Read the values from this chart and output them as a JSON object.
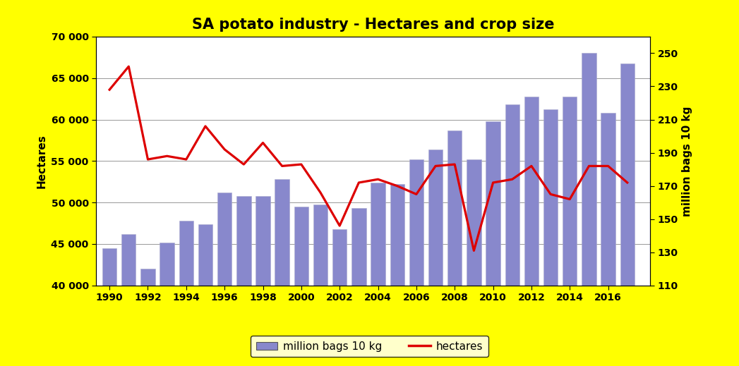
{
  "title": "SA potato industry - Hectares and crop size",
  "years": [
    1990,
    1991,
    1992,
    1993,
    1994,
    1995,
    1996,
    1997,
    1998,
    1999,
    2000,
    2001,
    2002,
    2003,
    2004,
    2005,
    2006,
    2007,
    2008,
    2009,
    2010,
    2011,
    2012,
    2013,
    2014,
    2015,
    2016,
    2017
  ],
  "hectares": [
    44500,
    46200,
    42000,
    45200,
    47800,
    47400,
    51200,
    50800,
    50800,
    52800,
    49500,
    49800,
    46800,
    49300,
    52400,
    52200,
    55200,
    56400,
    58700,
    55200,
    59800,
    61800,
    62800,
    61200,
    62800,
    68000,
    60800,
    66800
  ],
  "million_bags": [
    228,
    242,
    186,
    188,
    186,
    206,
    192,
    183,
    196,
    182,
    183,
    166,
    146,
    172,
    174,
    170,
    165,
    182,
    183,
    131,
    172,
    174,
    182,
    165,
    162,
    182,
    182,
    172
  ],
  "bar_color": "#8888cc",
  "line_color": "#dd0000",
  "ylabel_left": "Hectares",
  "ylabel_right": "million bags 10 kg",
  "ylim_left": [
    40000,
    70000
  ],
  "ylim_right": [
    110,
    260
  ],
  "yticks_left": [
    40000,
    45000,
    50000,
    55000,
    60000,
    65000,
    70000
  ],
  "ytick_labels_left": [
    "40 000",
    "45 000",
    "50 000",
    "55 000",
    "60 000",
    "65 000",
    "70 000"
  ],
  "yticks_right": [
    110,
    130,
    150,
    170,
    190,
    210,
    230,
    250
  ],
  "xticks": [
    1990,
    1992,
    1994,
    1996,
    1998,
    2000,
    2002,
    2004,
    2006,
    2008,
    2010,
    2012,
    2014,
    2016
  ],
  "background_color": "#ffff00",
  "plot_bg_color": "#ffffff",
  "legend_bar_label": "million bags 10 kg",
  "legend_line_label": "hectares",
  "title_fontsize": 15,
  "axis_label_fontsize": 11,
  "tick_fontsize": 10
}
